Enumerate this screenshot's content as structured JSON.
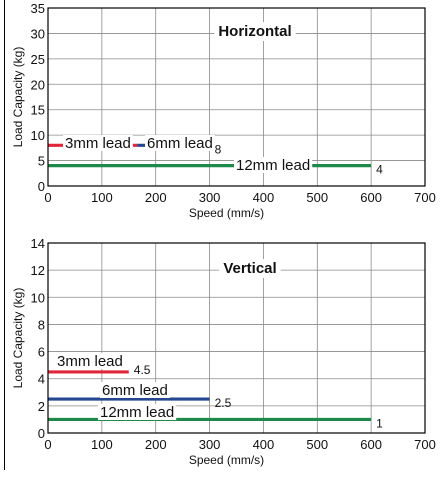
{
  "chart_data": [
    {
      "type": "line",
      "title": "Horizontal",
      "xlabel": "Speed (mm/s)",
      "ylabel": "Load Capacity (kg)",
      "xlim": [
        0,
        700
      ],
      "ylim": [
        0,
        35
      ],
      "x_ticks": [
        0,
        100,
        200,
        300,
        400,
        500,
        600,
        700
      ],
      "y_ticks": [
        0,
        5,
        10,
        15,
        20,
        25,
        30,
        35
      ],
      "grid": true,
      "series": [
        {
          "name": "3mm lead",
          "x": [
            0,
            166
          ],
          "y": [
            8,
            8
          ],
          "color": "#e0273a",
          "value_label": ""
        },
        {
          "name": "6mm lead",
          "x": [
            166,
            300
          ],
          "y": [
            8,
            8
          ],
          "color": "#24478f",
          "value_label": "8"
        },
        {
          "name": "12mm lead",
          "x": [
            0,
            600
          ],
          "y": [
            4,
            4
          ],
          "color": "#1e8a4a",
          "value_label": "4"
        }
      ]
    },
    {
      "type": "line",
      "title": "Vertical",
      "xlabel": "Speed (mm/s)",
      "ylabel": "Load Capacity (kg)",
      "xlim": [
        0,
        700
      ],
      "ylim": [
        0,
        14
      ],
      "x_ticks": [
        0,
        100,
        200,
        300,
        400,
        500,
        600,
        700
      ],
      "y_ticks": [
        0,
        2,
        4,
        6,
        8,
        10,
        12,
        14
      ],
      "grid": true,
      "series": [
        {
          "name": "3mm lead",
          "x": [
            0,
            150
          ],
          "y": [
            4.5,
            4.5
          ],
          "color": "#e0273a",
          "value_label": "4.5"
        },
        {
          "name": "6mm lead",
          "x": [
            0,
            300
          ],
          "y": [
            2.5,
            2.5
          ],
          "color": "#24478f",
          "value_label": "2.5"
        },
        {
          "name": "12mm lead",
          "x": [
            0,
            600
          ],
          "y": [
            1,
            1
          ],
          "color": "#1e8a4a",
          "value_label": "1"
        }
      ]
    }
  ]
}
